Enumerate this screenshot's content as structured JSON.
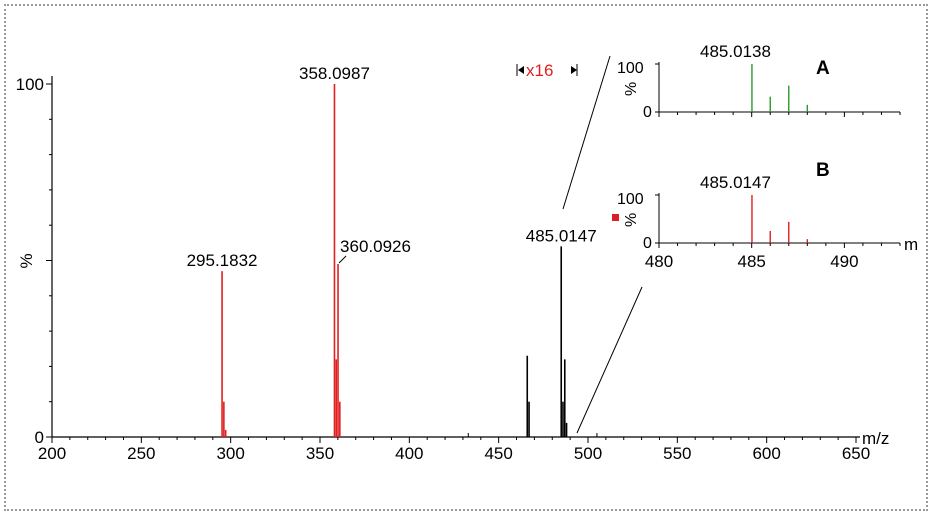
{
  "chart_data": {
    "main": {
      "type": "bar",
      "xlabel": "m/z",
      "ylabel": "%",
      "xlim": [
        200,
        650
      ],
      "ylim": [
        0,
        100
      ],
      "xticks": [
        200,
        250,
        300,
        350,
        400,
        450,
        500,
        550,
        600,
        650
      ],
      "yticks": [
        0,
        50,
        100
      ],
      "ytick_labels": [
        "0",
        "%",
        "100"
      ],
      "colors": {
        "red": "#e02020",
        "black": "#000000"
      },
      "peaks": [
        {
          "mz": 295.1832,
          "intensity": 47,
          "color": "red"
        },
        {
          "mz": 296.19,
          "intensity": 10,
          "color": "red"
        },
        {
          "mz": 297.19,
          "intensity": 2,
          "color": "red"
        },
        {
          "mz": 358.0987,
          "intensity": 100,
          "color": "red"
        },
        {
          "mz": 359.1,
          "intensity": 22,
          "color": "red"
        },
        {
          "mz": 360.0926,
          "intensity": 49,
          "color": "red"
        },
        {
          "mz": 361.09,
          "intensity": 10,
          "color": "red"
        },
        {
          "mz": 466.0,
          "intensity": 23,
          "color": "black"
        },
        {
          "mz": 467.0,
          "intensity": 10,
          "color": "black"
        },
        {
          "mz": 485.0147,
          "intensity": 54,
          "color": "black"
        },
        {
          "mz": 486.0,
          "intensity": 10,
          "color": "black"
        },
        {
          "mz": 487.0,
          "intensity": 22,
          "color": "black"
        },
        {
          "mz": 488.0,
          "intensity": 4,
          "color": "black"
        }
      ],
      "peak_labels": [
        {
          "text": "295.1832",
          "mz": 295.1832
        },
        {
          "text": "358.0987",
          "mz": 358.0987
        },
        {
          "text": "360.0926",
          "mz": 360.0926
        },
        {
          "text": "485.0147",
          "mz": 485.0147
        }
      ],
      "zoom_label": "x16"
    },
    "inset_A": {
      "panel": "A",
      "label": "485.0138",
      "ylabel": "%",
      "ylim": [
        0,
        100
      ],
      "ytick_labels": [
        "0",
        "100"
      ],
      "xlim": [
        480,
        493
      ],
      "color": "#2a9a2a",
      "peaks": [
        {
          "mz": 485.0138,
          "intensity": 100
        },
        {
          "mz": 486.0,
          "intensity": 32
        },
        {
          "mz": 487.0,
          "intensity": 55
        },
        {
          "mz": 488.0,
          "intensity": 15
        }
      ]
    },
    "inset_B": {
      "panel": "B",
      "label": "485.0147",
      "ylabel": "%",
      "ylim": [
        0,
        100
      ],
      "ytick_labels": [
        "0",
        "100"
      ],
      "xlim": [
        480,
        493
      ],
      "xticks": [
        480,
        485,
        490
      ],
      "xlabel": "m",
      "color": "#e02020",
      "peaks": [
        {
          "mz": 485.0147,
          "intensity": 100
        },
        {
          "mz": 486.0,
          "intensity": 25
        },
        {
          "mz": 487.0,
          "intensity": 44
        },
        {
          "mz": 488.0,
          "intensity": 8
        }
      ]
    }
  }
}
